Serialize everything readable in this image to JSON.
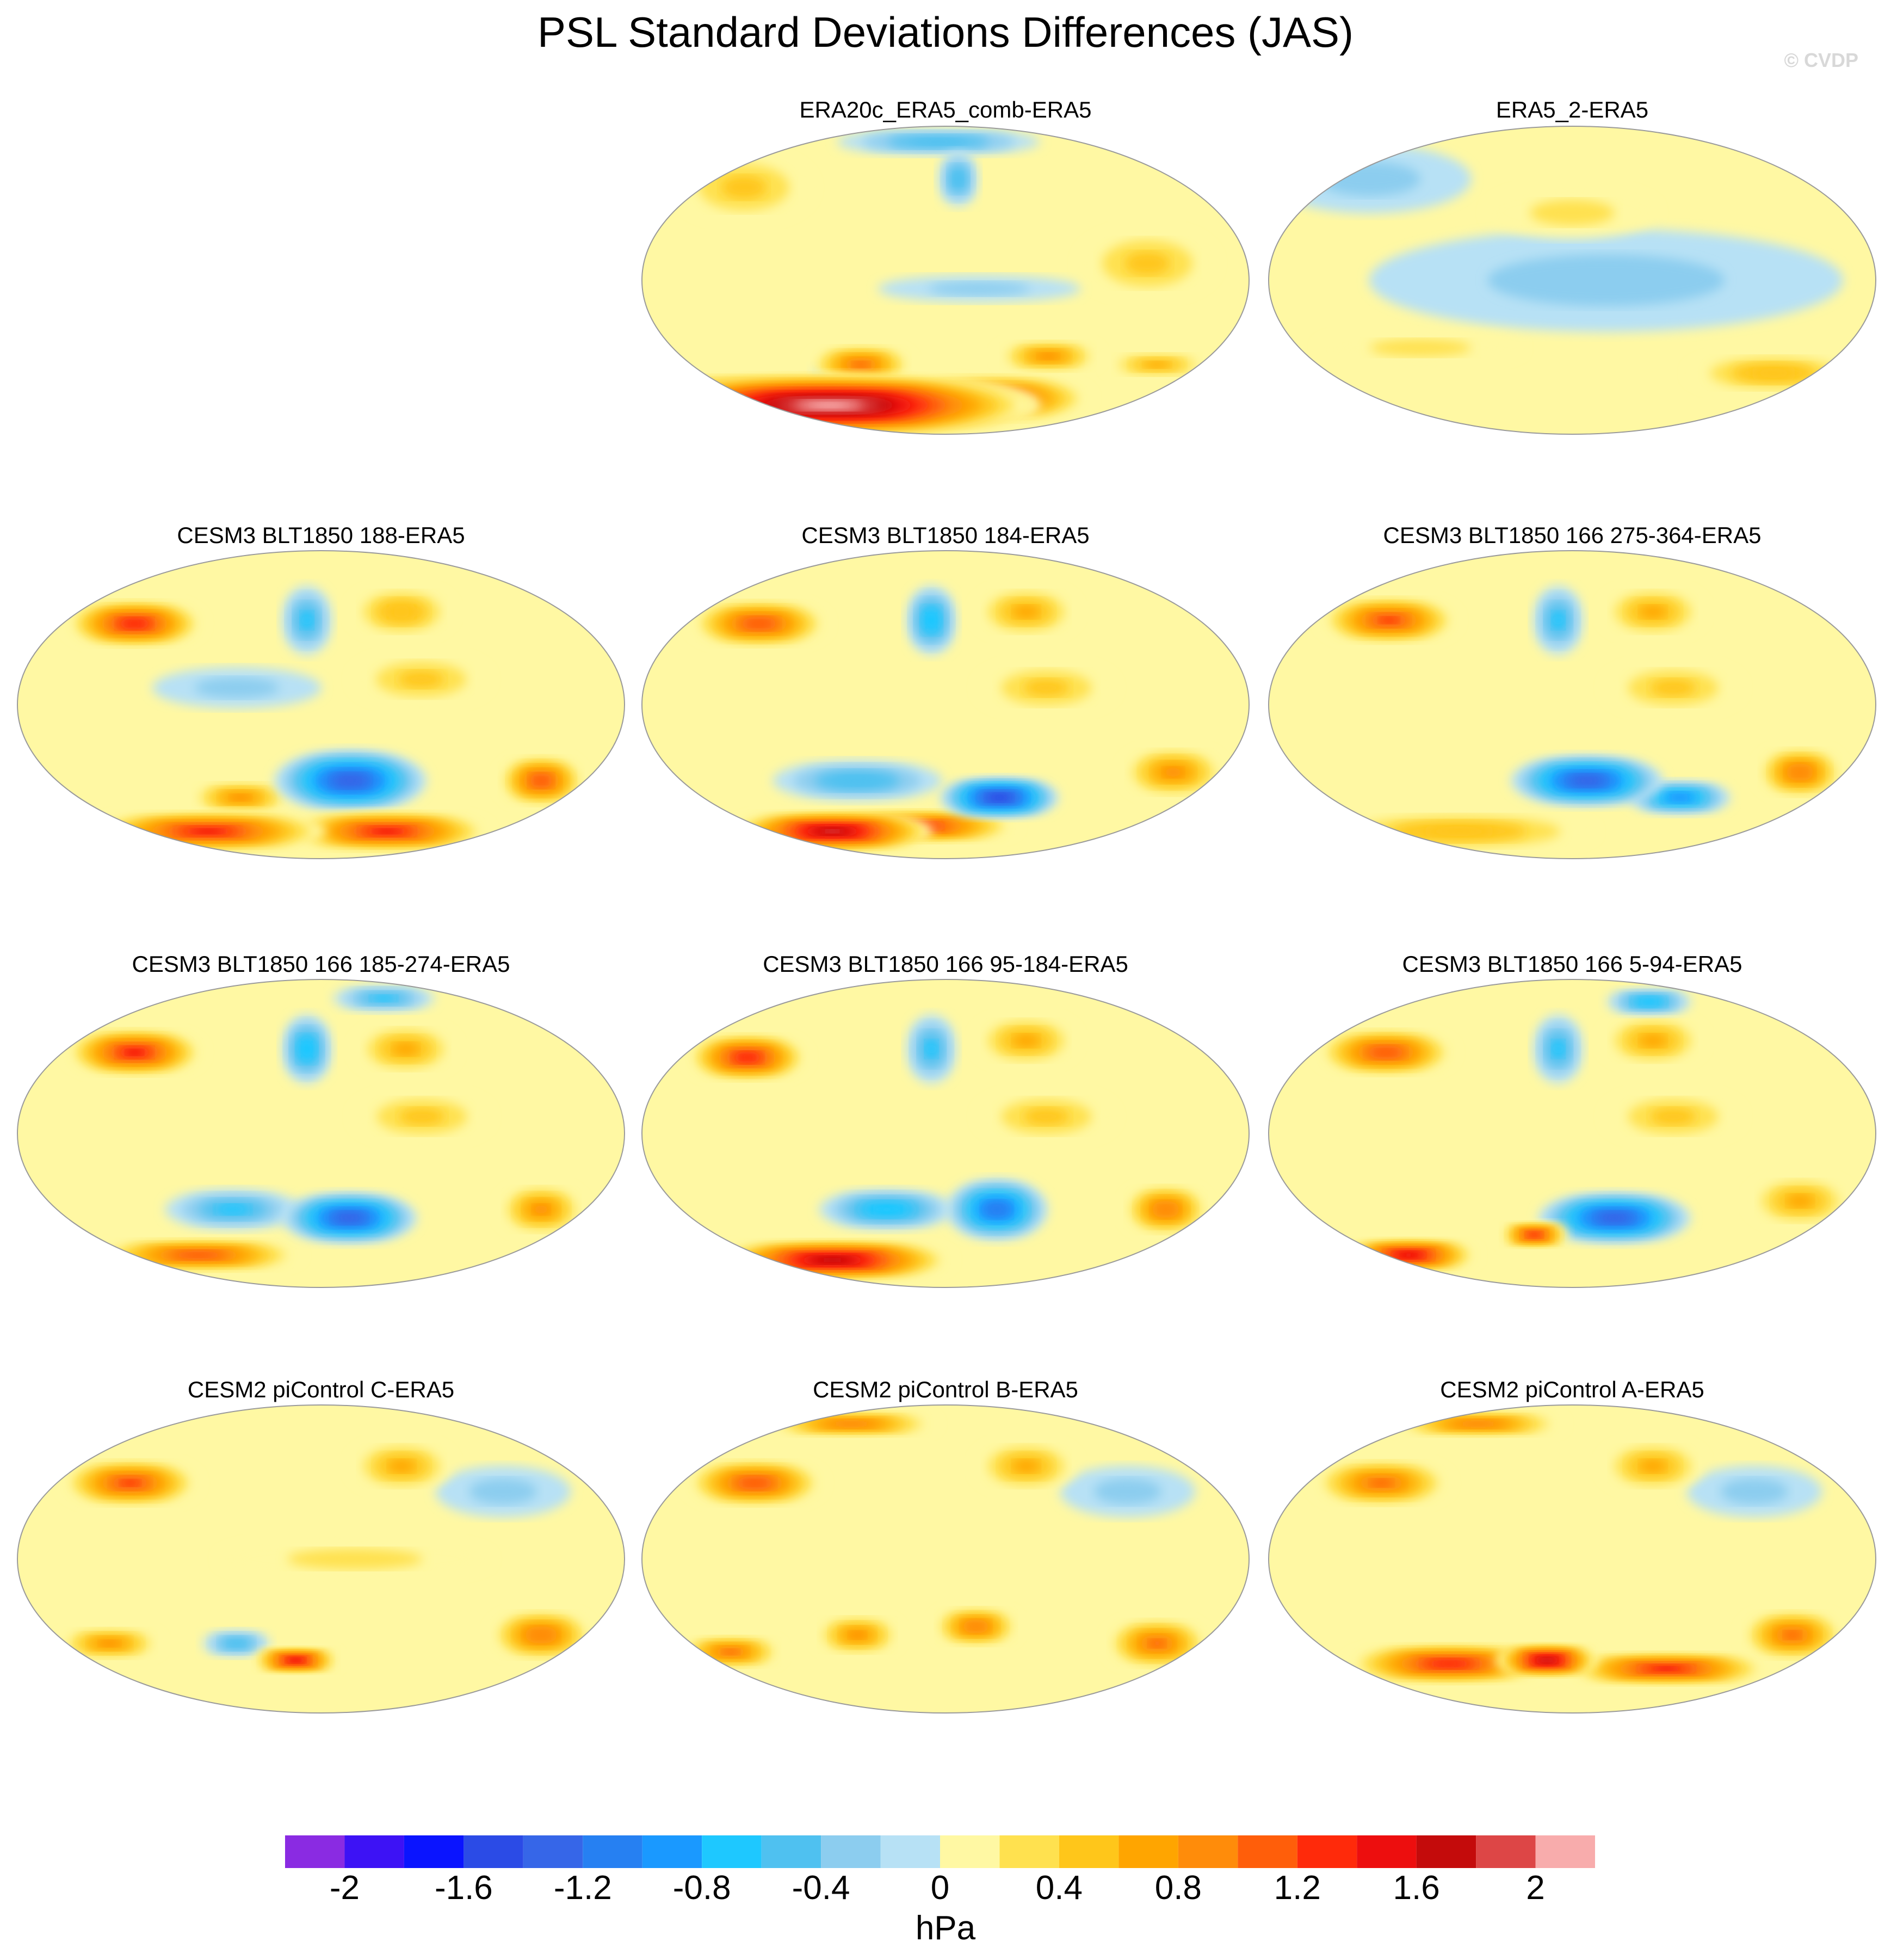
{
  "title": "PSL Standard Deviations Differences (JAS)",
  "credit": "© CVDP",
  "chart_data": {
    "type": "heatmap",
    "projection": "Robinson, Pacific-centered global maps",
    "units": "hPa",
    "season": "JAS",
    "color_levels": [
      -2.2,
      -2.0,
      -1.8,
      -1.6,
      -1.4,
      -1.2,
      -1.0,
      -0.8,
      -0.6,
      -0.4,
      -0.2,
      0.0,
      0.2,
      0.4,
      0.6,
      0.8,
      1.0,
      1.2,
      1.4,
      1.6,
      1.8,
      2.0,
      2.2
    ],
    "colorbar_colors": [
      "#8a2be2",
      "#3d12f5",
      "#0a14ff",
      "#2b4be6",
      "#3666e8",
      "#2680f2",
      "#1a99ff",
      "#1ec8ff",
      "#4fc1f0",
      "#8ccdef",
      "#b7e1f5",
      "#fff8a3",
      "#ffe14f",
      "#ffc61a",
      "#ffa500",
      "#ff8c0a",
      "#ff5e0a",
      "#ff2a0a",
      "#ed0e0e",
      "#c40b0b",
      "#dd4646",
      "#f8acac"
    ],
    "colorbar_tick_labels": [
      "-2",
      "-1.6",
      "-1.2",
      "-0.8",
      "-0.4",
      "0",
      "0.4",
      "0.8",
      "1.2",
      "1.6",
      "2"
    ],
    "colorbar_tick_values": [
      -2.0,
      -1.6,
      -1.2,
      -0.8,
      -0.4,
      0.0,
      0.4,
      0.8,
      1.2,
      1.6,
      2.0
    ],
    "colorbar_label": "hPa",
    "panels": [
      {
        "title": "ERA20c_ERA5_comb-ERA5",
        "anomalies": [
          {
            "lon": 60,
            "lat": -74,
            "value": 2.1,
            "rx": 120,
            "ry": 18
          },
          {
            "lon": 140,
            "lat": -74,
            "value": 1.9,
            "rx": 80,
            "ry": 15
          },
          {
            "lon": 10,
            "lat": -68,
            "value": 1.4,
            "rx": 80,
            "ry": 12
          },
          {
            "lon": 220,
            "lat": -70,
            "value": 1.3,
            "rx": 60,
            "ry": 14
          },
          {
            "lon": 95,
            "lat": -58,
            "value": -0.8,
            "rx": 14,
            "ry": 8
          },
          {
            "lon": 120,
            "lat": -50,
            "value": 1.0,
            "rx": 30,
            "ry": 12
          },
          {
            "lon": 250,
            "lat": -45,
            "value": 0.8,
            "rx": 30,
            "ry": 10
          },
          {
            "lon": 330,
            "lat": -50,
            "value": 0.7,
            "rx": 30,
            "ry": 8
          },
          {
            "lon": 190,
            "lat": 60,
            "value": -0.6,
            "rx": 12,
            "ry": 16
          },
          {
            "lon": 170,
            "lat": 82,
            "value": -0.5,
            "rx": 60,
            "ry": 8
          },
          {
            "lon": 30,
            "lat": 55,
            "value": 0.4,
            "rx": 40,
            "ry": 20
          },
          {
            "lon": 300,
            "lat": 10,
            "value": 0.4,
            "rx": 40,
            "ry": 20
          },
          {
            "lon": 200,
            "lat": -5,
            "value": -0.3,
            "rx": 60,
            "ry": 8
          }
        ]
      },
      {
        "title": "ERA5_2-ERA5",
        "anomalies": [
          {
            "lon": 200,
            "lat": 0,
            "value": -0.3,
            "rx": 140,
            "ry": 30
          },
          {
            "lon": 20,
            "lat": 60,
            "value": -0.3,
            "rx": 60,
            "ry": 20
          },
          {
            "lon": 330,
            "lat": -55,
            "value": 0.5,
            "rx": 50,
            "ry": 12
          },
          {
            "lon": 180,
            "lat": 40,
            "value": 0.3,
            "rx": 50,
            "ry": 15
          },
          {
            "lon": 80,
            "lat": -40,
            "value": 0.3,
            "rx": 60,
            "ry": 10
          }
        ]
      },
      {
        "title": "CESM3 BLT1850 188-ERA5",
        "anomalies": [
          {
            "lon": 50,
            "lat": 48,
            "value": 1.3,
            "rx": 40,
            "ry": 14
          },
          {
            "lon": 200,
            "lat": -45,
            "value": -1.4,
            "rx": 45,
            "ry": 18
          },
          {
            "lon": 170,
            "lat": 50,
            "value": -0.7,
            "rx": 15,
            "ry": 20
          },
          {
            "lon": 330,
            "lat": -45,
            "value": 1.1,
            "rx": 25,
            "ry": 15
          },
          {
            "lon": 250,
            "lat": -75,
            "value": 1.4,
            "rx": 60,
            "ry": 12
          },
          {
            "lon": 60,
            "lat": -75,
            "value": 1.4,
            "rx": 70,
            "ry": 12
          },
          {
            "lon": 240,
            "lat": 55,
            "value": 0.5,
            "rx": 30,
            "ry": 15
          },
          {
            "lon": 120,
            "lat": -55,
            "value": 0.8,
            "rx": 30,
            "ry": 10
          },
          {
            "lon": 240,
            "lat": 15,
            "value": 0.4,
            "rx": 40,
            "ry": 15
          },
          {
            "lon": 130,
            "lat": 10,
            "value": -0.3,
            "rx": 50,
            "ry": 12
          }
        ]
      },
      {
        "title": "CESM3 BLT1850 184-ERA5",
        "anomalies": [
          {
            "lon": 50,
            "lat": 48,
            "value": 1.1,
            "rx": 40,
            "ry": 14
          },
          {
            "lon": 220,
            "lat": -55,
            "value": -1.5,
            "rx": 35,
            "ry": 12
          },
          {
            "lon": 170,
            "lat": 50,
            "value": -0.8,
            "rx": 15,
            "ry": 20
          },
          {
            "lon": 60,
            "lat": -75,
            "value": 1.9,
            "rx": 60,
            "ry": 12
          },
          {
            "lon": 150,
            "lat": -72,
            "value": 1.3,
            "rx": 60,
            "ry": 10
          },
          {
            "lon": 240,
            "lat": 55,
            "value": 0.6,
            "rx": 30,
            "ry": 15
          },
          {
            "lon": 330,
            "lat": -40,
            "value": 0.8,
            "rx": 30,
            "ry": 15
          },
          {
            "lon": 120,
            "lat": -45,
            "value": -0.6,
            "rx": 50,
            "ry": 12
          },
          {
            "lon": 240,
            "lat": 10,
            "value": 0.4,
            "rx": 40,
            "ry": 15
          }
        ]
      },
      {
        "title": "CESM3 BLT1850 166 275-364-ERA5",
        "anomalies": [
          {
            "lon": 50,
            "lat": 50,
            "value": 1.2,
            "rx": 40,
            "ry": 14
          },
          {
            "lon": 190,
            "lat": -45,
            "value": -1.3,
            "rx": 45,
            "ry": 15
          },
          {
            "lon": 260,
            "lat": -55,
            "value": -1.0,
            "rx": 30,
            "ry": 10
          },
          {
            "lon": 170,
            "lat": 50,
            "value": -0.7,
            "rx": 15,
            "ry": 20
          },
          {
            "lon": 330,
            "lat": -40,
            "value": 0.9,
            "rx": 25,
            "ry": 15
          },
          {
            "lon": 240,
            "lat": 55,
            "value": 0.7,
            "rx": 30,
            "ry": 15
          },
          {
            "lon": 60,
            "lat": -75,
            "value": 0.5,
            "rx": 80,
            "ry": 12
          },
          {
            "lon": 240,
            "lat": 10,
            "value": 0.4,
            "rx": 40,
            "ry": 15
          }
        ]
      },
      {
        "title": "CESM3 BLT1850 166 185-274-ERA5",
        "anomalies": [
          {
            "lon": 50,
            "lat": 48,
            "value": 1.4,
            "rx": 40,
            "ry": 14
          },
          {
            "lon": 200,
            "lat": -50,
            "value": -1.3,
            "rx": 40,
            "ry": 15
          },
          {
            "lon": 120,
            "lat": -45,
            "value": -0.7,
            "rx": 40,
            "ry": 12
          },
          {
            "lon": 170,
            "lat": 50,
            "value": -0.8,
            "rx": 15,
            "ry": 20
          },
          {
            "lon": 260,
            "lat": 80,
            "value": -0.7,
            "rx": 30,
            "ry": 8
          },
          {
            "lon": 330,
            "lat": -45,
            "value": 0.8,
            "rx": 25,
            "ry": 15
          },
          {
            "lon": 60,
            "lat": -72,
            "value": 1.1,
            "rx": 60,
            "ry": 10
          },
          {
            "lon": 240,
            "lat": 50,
            "value": 0.7,
            "rx": 30,
            "ry": 15
          },
          {
            "lon": 240,
            "lat": 10,
            "value": 0.4,
            "rx": 40,
            "ry": 15
          }
        ]
      },
      {
        "title": "CESM3 BLT1850 166 95-184-ERA5",
        "anomalies": [
          {
            "lon": 45,
            "lat": 45,
            "value": 1.3,
            "rx": 35,
            "ry": 14
          },
          {
            "lon": 215,
            "lat": -45,
            "value": -1.2,
            "rx": 30,
            "ry": 18
          },
          {
            "lon": 140,
            "lat": -45,
            "value": -0.8,
            "rx": 40,
            "ry": 12
          },
          {
            "lon": 170,
            "lat": 50,
            "value": -0.7,
            "rx": 15,
            "ry": 20
          },
          {
            "lon": 60,
            "lat": -75,
            "value": 1.7,
            "rx": 70,
            "ry": 12
          },
          {
            "lon": 330,
            "lat": -45,
            "value": 0.9,
            "rx": 25,
            "ry": 15
          },
          {
            "lon": 240,
            "lat": 55,
            "value": 0.6,
            "rx": 30,
            "ry": 15
          },
          {
            "lon": 240,
            "lat": 10,
            "value": 0.4,
            "rx": 40,
            "ry": 15
          }
        ]
      },
      {
        "title": "CESM3 BLT1850 166 5-94-ERA5",
        "anomalies": [
          {
            "lon": 50,
            "lat": 48,
            "value": 1.1,
            "rx": 40,
            "ry": 14
          },
          {
            "lon": 210,
            "lat": -50,
            "value": -1.3,
            "rx": 45,
            "ry": 15
          },
          {
            "lon": 150,
            "lat": -60,
            "value": 1.3,
            "rx": 20,
            "ry": 8
          },
          {
            "lon": 170,
            "lat": 50,
            "value": -0.7,
            "rx": 15,
            "ry": 20
          },
          {
            "lon": 270,
            "lat": 78,
            "value": -0.8,
            "rx": 25,
            "ry": 8
          },
          {
            "lon": 20,
            "lat": -72,
            "value": 1.5,
            "rx": 40,
            "ry": 10
          },
          {
            "lon": 240,
            "lat": 55,
            "value": 0.6,
            "rx": 30,
            "ry": 15
          },
          {
            "lon": 330,
            "lat": -40,
            "value": 0.6,
            "rx": 30,
            "ry": 15
          },
          {
            "lon": 240,
            "lat": 10,
            "value": 0.4,
            "rx": 40,
            "ry": 15
          }
        ]
      },
      {
        "title": "CESM2 piControl C-ERA5",
        "anomalies": [
          {
            "lon": 50,
            "lat": 45,
            "value": 1.2,
            "rx": 40,
            "ry": 14
          },
          {
            "lon": 160,
            "lat": -60,
            "value": 1.5,
            "rx": 25,
            "ry": 8
          },
          {
            "lon": 120,
            "lat": -50,
            "value": -0.6,
            "rx": 20,
            "ry": 8
          },
          {
            "lon": 330,
            "lat": -45,
            "value": 0.9,
            "rx": 30,
            "ry": 15
          },
          {
            "lon": 30,
            "lat": -50,
            "value": 0.8,
            "rx": 30,
            "ry": 10
          },
          {
            "lon": 240,
            "lat": 55,
            "value": 0.6,
            "rx": 30,
            "ry": 15
          },
          {
            "lon": 300,
            "lat": 40,
            "value": -0.3,
            "rx": 40,
            "ry": 15
          },
          {
            "lon": 200,
            "lat": 0,
            "value": 0.3,
            "rx": 80,
            "ry": 12
          }
        ]
      },
      {
        "title": "CESM2 piControl B-ERA5",
        "anomalies": [
          {
            "lon": 50,
            "lat": 45,
            "value": 1.1,
            "rx": 40,
            "ry": 14
          },
          {
            "lon": 60,
            "lat": 80,
            "value": 0.9,
            "rx": 50,
            "ry": 8
          },
          {
            "lon": 200,
            "lat": -40,
            "value": 0.9,
            "rx": 25,
            "ry": 12
          },
          {
            "lon": 120,
            "lat": -45,
            "value": 0.8,
            "rx": 25,
            "ry": 12
          },
          {
            "lon": 330,
            "lat": -50,
            "value": 1.0,
            "rx": 30,
            "ry": 15
          },
          {
            "lon": 240,
            "lat": 55,
            "value": 0.6,
            "rx": 30,
            "ry": 15
          },
          {
            "lon": 300,
            "lat": 40,
            "value": -0.3,
            "rx": 40,
            "ry": 15
          },
          {
            "lon": 20,
            "lat": -55,
            "value": 1.0,
            "rx": 30,
            "ry": 10
          }
        ]
      },
      {
        "title": "CESM2 piControl A-ERA5",
        "anomalies": [
          {
            "lon": 50,
            "lat": 45,
            "value": 1.0,
            "rx": 40,
            "ry": 14
          },
          {
            "lon": 160,
            "lat": -60,
            "value": 1.9,
            "rx": 30,
            "ry": 10
          },
          {
            "lon": 80,
            "lat": -62,
            "value": 1.3,
            "rx": 60,
            "ry": 12
          },
          {
            "lon": 260,
            "lat": -65,
            "value": 1.4,
            "rx": 60,
            "ry": 10
          },
          {
            "lon": 60,
            "lat": 80,
            "value": 0.9,
            "rx": 50,
            "ry": 8
          },
          {
            "lon": 330,
            "lat": -45,
            "value": 1.0,
            "rx": 30,
            "ry": 15
          },
          {
            "lon": 240,
            "lat": 55,
            "value": 0.6,
            "rx": 30,
            "ry": 15
          },
          {
            "lon": 300,
            "lat": 40,
            "value": -0.3,
            "rx": 40,
            "ry": 15
          }
        ]
      }
    ]
  }
}
